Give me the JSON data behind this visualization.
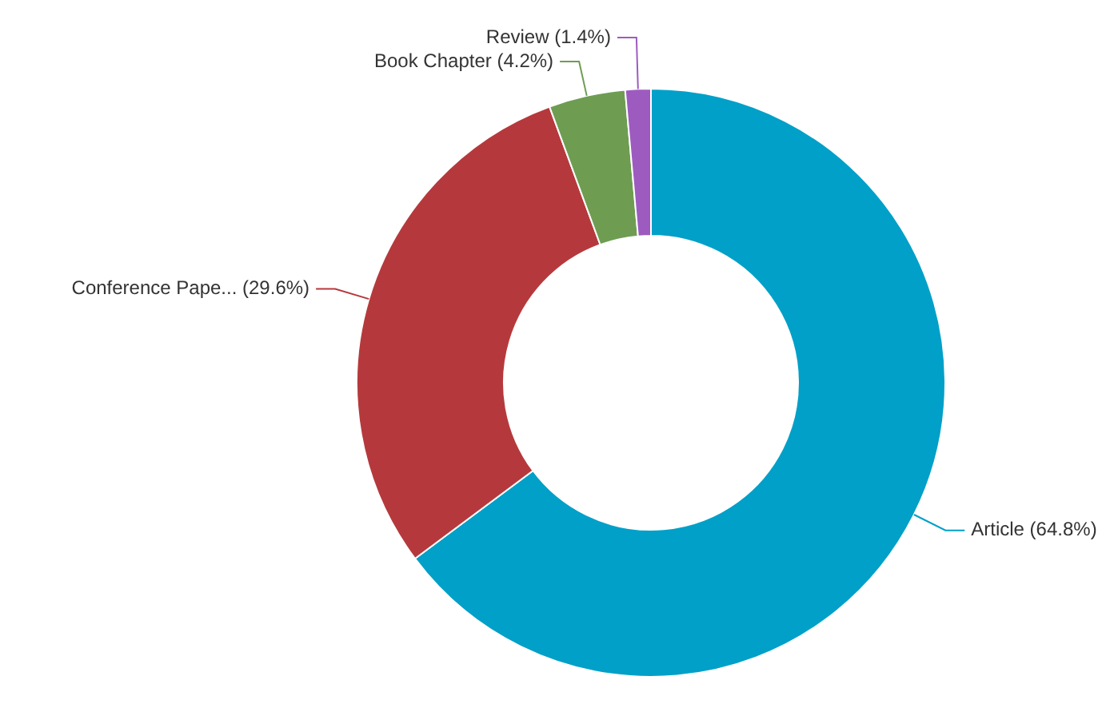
{
  "chart_data": {
    "type": "donut",
    "categories": [
      "Article (64.8%)",
      "Conference Pape... (29.6%)",
      "Book Chapter (4.2%)",
      "Review (1.4%)"
    ],
    "values": [
      64.8,
      29.6,
      4.2,
      1.4
    ],
    "colors": [
      "#00a0c8",
      "#b5393c",
      "#6e9d52",
      "#9d5bbf"
    ],
    "legend": false
  }
}
